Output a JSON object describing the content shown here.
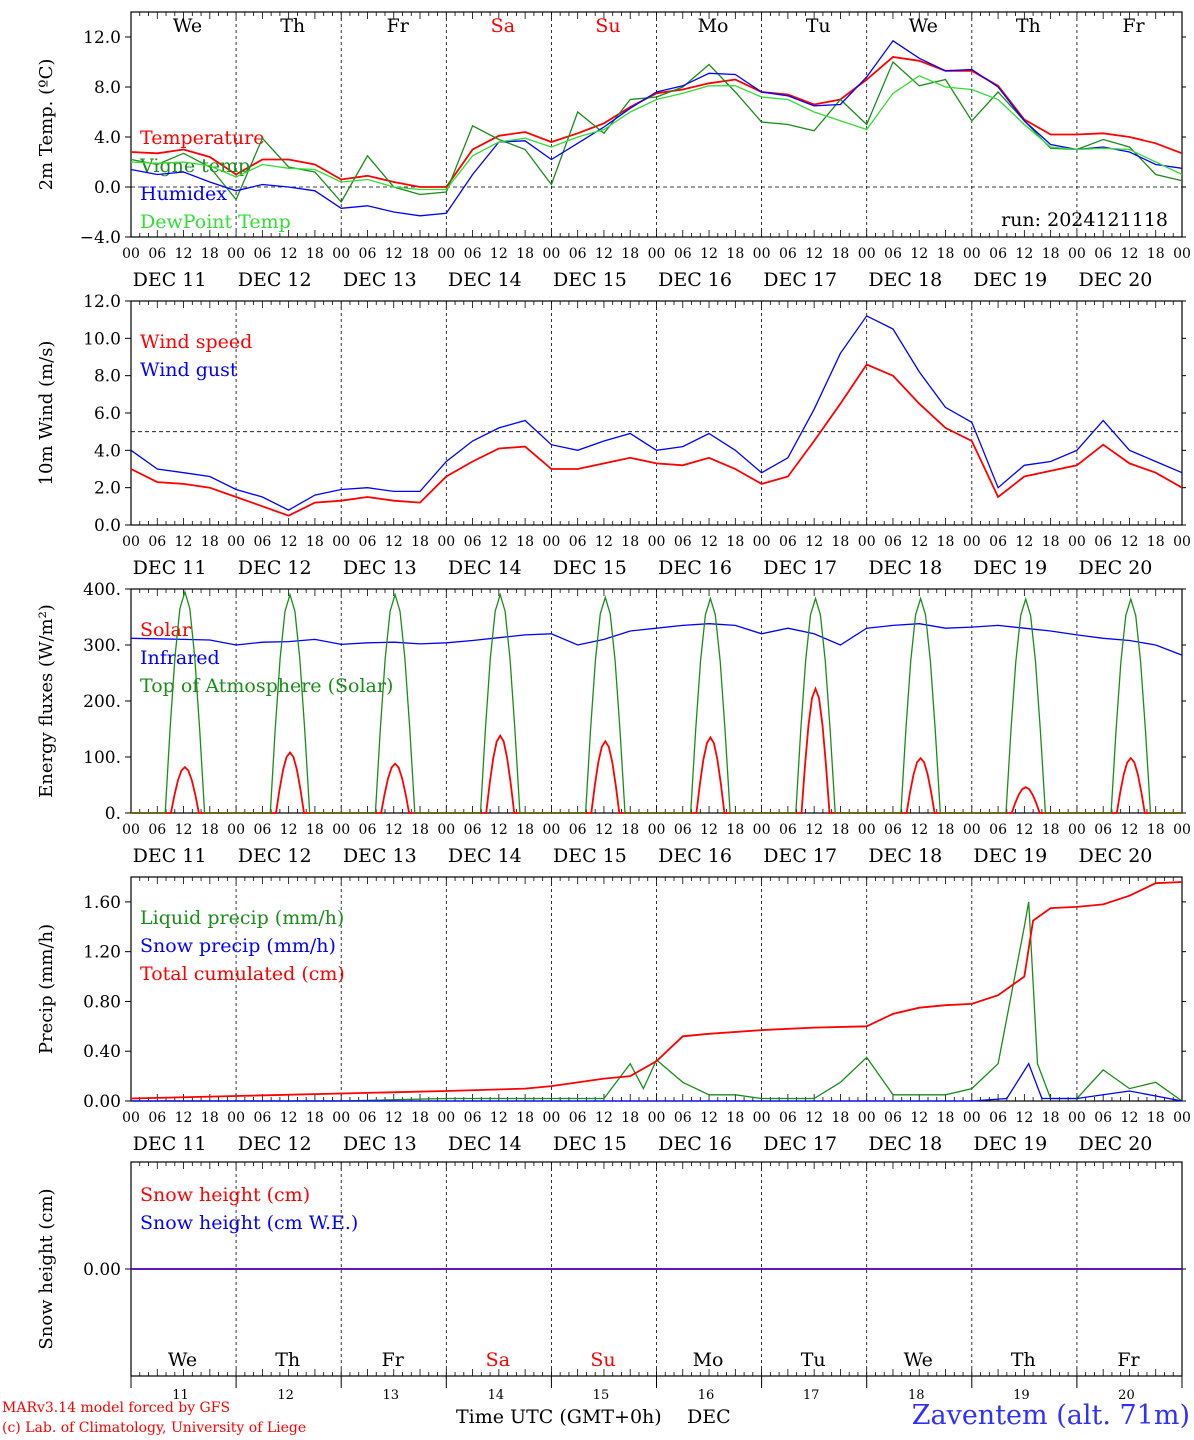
{
  "days": [
    {
      "abbr": "We",
      "date": "DEC 11",
      "num": "11",
      "weekend": false
    },
    {
      "abbr": "Th",
      "date": "DEC 12",
      "num": "12",
      "weekend": false
    },
    {
      "abbr": "Fr",
      "date": "DEC 13",
      "num": "13",
      "weekend": false
    },
    {
      "abbr": "Sa",
      "date": "DEC 14",
      "num": "14",
      "weekend": true
    },
    {
      "abbr": "Su",
      "date": "DEC 15",
      "num": "15",
      "weekend": true
    },
    {
      "abbr": "Mo",
      "date": "DEC 16",
      "num": "16",
      "weekend": false
    },
    {
      "abbr": "Tu",
      "date": "DEC 17",
      "num": "17",
      "weekend": false
    },
    {
      "abbr": "We",
      "date": "DEC 18",
      "num": "18",
      "weekend": false
    },
    {
      "abbr": "Th",
      "date": "DEC 19",
      "num": "19",
      "weekend": false
    },
    {
      "abbr": "Fr",
      "date": "DEC 20",
      "num": "20",
      "weekend": false
    }
  ],
  "hour_ticks": [
    "00",
    "06",
    "12",
    "18"
  ],
  "colors": {
    "red": "#ff0000",
    "blue": "#0000ff",
    "green": "#1a8c1a",
    "lightgreen": "#33dd33",
    "dark": "#000000"
  },
  "run_label": "run: 2024121118",
  "footer": {
    "model": "MARv3.14 model forced by GFS",
    "lab": "(c) Lab. of Climatology, University of Liege",
    "xlabel": "Time UTC (GMT+0h)",
    "xlabel_month": "DEC",
    "station": "Zaventem (alt. 71m)"
  },
  "chart_data": [
    {
      "type": "line",
      "ylabel": "2m Temp. (ºC)",
      "ylim": [
        -4,
        14
      ],
      "yticks": [
        -4,
        0,
        4,
        8,
        12
      ],
      "ytick_labels": [
        "−4.0",
        "0.0",
        "4.0",
        "8.0",
        "12.0"
      ],
      "refline": 0,
      "x_unit": "hours since DEC 11 00 UTC",
      "series": [
        {
          "name": "Temperature",
          "color": "red",
          "x": [
            0,
            6,
            12,
            18,
            24,
            30,
            36,
            42,
            48,
            54,
            60,
            66,
            72,
            78,
            84,
            90,
            96,
            102,
            108,
            114,
            120,
            126,
            132,
            138,
            144,
            150,
            156,
            162,
            168,
            174,
            180,
            186,
            192,
            198,
            204,
            210,
            216,
            222,
            228,
            234,
            240
          ],
          "y": [
            2.8,
            2.7,
            3.0,
            2.4,
            1.0,
            2.2,
            2.2,
            1.8,
            0.6,
            0.9,
            0.4,
            0.0,
            0.0,
            3.0,
            4.1,
            4.4,
            3.6,
            4.3,
            5.1,
            6.4,
            7.5,
            7.8,
            8.3,
            8.6,
            7.6,
            7.4,
            6.6,
            7.0,
            8.6,
            10.4,
            10.1,
            9.3,
            9.3,
            8.1,
            5.4,
            4.2,
            4.2,
            4.3,
            4.0,
            3.5,
            2.7
          ]
        },
        {
          "name": "Vigne temp",
          "color": "green",
          "x": [
            0,
            6,
            12,
            18,
            24,
            30,
            36,
            42,
            48,
            54,
            60,
            66,
            72,
            78,
            84,
            90,
            96,
            102,
            108,
            114,
            120,
            126,
            132,
            138,
            144,
            150,
            156,
            162,
            168,
            174,
            180,
            186,
            192,
            198,
            204,
            210,
            216,
            222,
            228,
            234,
            240
          ],
          "y": [
            2.2,
            1.8,
            2.7,
            1.6,
            -1.0,
            3.9,
            1.6,
            1.2,
            -1.2,
            2.5,
            0.0,
            -0.6,
            -0.4,
            4.9,
            3.8,
            3.0,
            0.2,
            6.0,
            4.3,
            7.0,
            7.2,
            8.0,
            9.8,
            7.6,
            5.2,
            5.0,
            4.5,
            7.0,
            5.0,
            10.0,
            8.1,
            8.6,
            5.3,
            7.6,
            5.3,
            3.1,
            3.0,
            3.8,
            3.2,
            1.0,
            0.5
          ]
        },
        {
          "name": "Humidex",
          "color": "blue",
          "x": [
            0,
            6,
            12,
            18,
            24,
            30,
            36,
            42,
            48,
            54,
            60,
            66,
            72,
            78,
            84,
            90,
            96,
            102,
            108,
            114,
            120,
            126,
            132,
            138,
            144,
            150,
            156,
            162,
            168,
            174,
            180,
            186,
            192,
            198,
            204,
            210,
            216,
            222,
            228,
            234,
            240
          ],
          "y": [
            1.4,
            1.0,
            1.2,
            0.4,
            -0.3,
            0.2,
            0.0,
            -0.3,
            -1.7,
            -1.5,
            -2.0,
            -2.3,
            -2.1,
            1.0,
            3.6,
            3.7,
            2.2,
            3.5,
            4.8,
            6.3,
            7.6,
            8.1,
            9.1,
            9.0,
            7.6,
            7.3,
            6.5,
            6.6,
            8.8,
            11.7,
            10.3,
            9.3,
            9.4,
            8.0,
            5.3,
            3.4,
            3.0,
            3.2,
            2.8,
            1.8,
            1.5
          ]
        },
        {
          "name": "DewPoint Temp",
          "color": "lightgreen",
          "x": [
            0,
            6,
            12,
            18,
            24,
            30,
            36,
            42,
            48,
            54,
            60,
            66,
            72,
            78,
            84,
            90,
            96,
            102,
            108,
            114,
            120,
            126,
            132,
            138,
            144,
            150,
            156,
            162,
            168,
            174,
            180,
            186,
            192,
            198,
            204,
            210,
            216,
            222,
            228,
            234,
            240
          ],
          "y": [
            2.0,
            1.9,
            2.0,
            1.7,
            0.8,
            1.8,
            1.5,
            1.4,
            0.4,
            0.6,
            0.0,
            -0.2,
            -0.2,
            2.5,
            3.6,
            3.9,
            3.2,
            4.0,
            4.6,
            6.0,
            7.0,
            7.5,
            8.1,
            8.1,
            7.2,
            7.0,
            6.0,
            5.3,
            4.6,
            7.5,
            8.9,
            8.0,
            7.8,
            7.0,
            5.0,
            3.2,
            3.0,
            3.1,
            3.0,
            2.0,
            1.0
          ]
        }
      ]
    },
    {
      "type": "line",
      "ylabel": "10m Wind (m/s)",
      "ylim": [
        0,
        12
      ],
      "yticks": [
        0,
        2,
        4,
        6,
        8,
        10,
        12
      ],
      "ytick_labels": [
        "0.0",
        "2.0",
        "4.0",
        "6.0",
        "8.0",
        "10.0",
        "12.0"
      ],
      "refline": 5,
      "x_unit": "hours since DEC 11 00 UTC",
      "series": [
        {
          "name": "Wind speed",
          "color": "red",
          "x": [
            0,
            6,
            12,
            18,
            24,
            30,
            36,
            42,
            48,
            54,
            60,
            66,
            72,
            78,
            84,
            90,
            96,
            102,
            108,
            114,
            120,
            126,
            132,
            138,
            144,
            150,
            156,
            162,
            168,
            174,
            180,
            186,
            192,
            198,
            204,
            210,
            216,
            222,
            228,
            234,
            240
          ],
          "y": [
            3.0,
            2.3,
            2.2,
            2.0,
            1.5,
            1.0,
            0.5,
            1.2,
            1.3,
            1.5,
            1.3,
            1.2,
            2.6,
            3.4,
            4.1,
            4.2,
            3.0,
            3.0,
            3.3,
            3.6,
            3.3,
            3.2,
            3.6,
            3.0,
            2.2,
            2.6,
            4.5,
            6.5,
            8.6,
            8.0,
            6.5,
            5.2,
            4.5,
            1.5,
            2.6,
            2.9,
            3.2,
            4.3,
            3.3,
            2.8,
            2.0
          ]
        },
        {
          "name": "Wind gust",
          "color": "blue",
          "x": [
            0,
            6,
            12,
            18,
            24,
            30,
            36,
            42,
            48,
            54,
            60,
            66,
            72,
            78,
            84,
            90,
            96,
            102,
            108,
            114,
            120,
            126,
            132,
            138,
            144,
            150,
            156,
            162,
            168,
            174,
            180,
            186,
            192,
            198,
            204,
            210,
            216,
            222,
            228,
            234,
            240
          ],
          "y": [
            4.0,
            3.0,
            2.8,
            2.6,
            1.9,
            1.5,
            0.8,
            1.6,
            1.9,
            2.0,
            1.8,
            1.8,
            3.4,
            4.5,
            5.2,
            5.6,
            4.3,
            4.0,
            4.5,
            4.9,
            4.0,
            4.2,
            4.9,
            4.0,
            2.8,
            3.6,
            6.2,
            9.2,
            11.2,
            10.5,
            8.2,
            6.3,
            5.5,
            2.0,
            3.2,
            3.4,
            4.0,
            5.6,
            4.0,
            3.4,
            2.8
          ]
        }
      ]
    },
    {
      "type": "line",
      "ylabel": "Energy fluxes (W/m²)",
      "ylim": [
        0,
        400
      ],
      "yticks": [
        0,
        100,
        200,
        300,
        400
      ],
      "ytick_labels": [
        "0.",
        "100.",
        "200.",
        "300.",
        "400."
      ],
      "x_unit": "hours since DEC 11 00 UTC",
      "series": [
        {
          "name": "Solar",
          "color": "red",
          "daily_peak": [
            82,
            108,
            88,
            138,
            128,
            135,
            222,
            98,
            46,
            98
          ]
        },
        {
          "name": "Infrared",
          "color": "blue",
          "x": [
            0,
            6,
            12,
            18,
            24,
            30,
            36,
            42,
            48,
            54,
            60,
            66,
            72,
            78,
            84,
            90,
            96,
            102,
            108,
            114,
            120,
            126,
            132,
            138,
            144,
            150,
            156,
            162,
            168,
            174,
            180,
            186,
            192,
            198,
            204,
            210,
            216,
            222,
            228,
            234,
            240
          ],
          "y": [
            312,
            311,
            310,
            309,
            300,
            305,
            306,
            310,
            301,
            304,
            305,
            302,
            304,
            308,
            313,
            318,
            320,
            300,
            310,
            325,
            330,
            335,
            338,
            335,
            320,
            330,
            320,
            300,
            330,
            335,
            338,
            330,
            332,
            335,
            330,
            325,
            318,
            312,
            308,
            300,
            282
          ]
        },
        {
          "name": "Top of Atmosphere (Solar)",
          "color": "green",
          "daily_peak": [
            395,
            390,
            390,
            390,
            385,
            383,
            383,
            383,
            382,
            382
          ]
        }
      ]
    },
    {
      "type": "line",
      "ylabel": "Precip (mm/h)",
      "ylim": [
        0,
        1.8
      ],
      "yticks": [
        0,
        0.4,
        0.8,
        1.2,
        1.6
      ],
      "ytick_labels": [
        "0.00",
        "0.40",
        "0.80",
        "1.20",
        "1.60"
      ],
      "x_unit": "hours since DEC 11 00 UTC",
      "series": [
        {
          "name": "Liquid precip (mm/h)",
          "color": "green",
          "x": [
            0,
            24,
            48,
            72,
            96,
            108,
            114,
            117,
            120,
            126,
            132,
            138,
            144,
            156,
            162,
            168,
            174,
            180,
            186,
            192,
            198,
            204,
            205,
            207,
            210,
            216,
            222,
            228,
            234,
            240
          ],
          "y": [
            0,
            0,
            0,
            0.02,
            0.02,
            0.02,
            0.3,
            0.1,
            0.33,
            0.15,
            0.05,
            0.05,
            0.02,
            0.02,
            0.15,
            0.35,
            0.05,
            0.05,
            0.05,
            0.1,
            0.3,
            1.4,
            1.6,
            0.3,
            0.02,
            0.02,
            0.25,
            0.1,
            0.15,
            0.0
          ]
        },
        {
          "name": "Snow precip (mm/h)",
          "color": "blue",
          "x": [
            0,
            48,
            96,
            120,
            144,
            168,
            192,
            200,
            205,
            208,
            216,
            228,
            240
          ],
          "y": [
            0,
            0,
            0,
            0,
            0,
            0,
            0,
            0.02,
            0.3,
            0.02,
            0.02,
            0.08,
            0.0
          ]
        },
        {
          "name": "Total cumulated (cm)",
          "color": "red",
          "x": [
            0,
            24,
            48,
            72,
            90,
            96,
            108,
            114,
            120,
            126,
            132,
            144,
            156,
            168,
            174,
            180,
            186,
            192,
            198,
            204,
            206,
            210,
            216,
            222,
            228,
            234,
            240
          ],
          "y": [
            0.02,
            0.04,
            0.06,
            0.08,
            0.1,
            0.12,
            0.18,
            0.2,
            0.32,
            0.52,
            0.54,
            0.57,
            0.59,
            0.6,
            0.7,
            0.75,
            0.77,
            0.78,
            0.85,
            1.0,
            1.45,
            1.55,
            1.56,
            1.58,
            1.65,
            1.75,
            1.76
          ]
        }
      ]
    },
    {
      "type": "line",
      "ylabel": "Snow height (cm)",
      "ylim": [
        -1,
        1
      ],
      "yticks": [
        0
      ],
      "ytick_labels": [
        "0.00"
      ],
      "x_unit": "hours since DEC 11 00 UTC",
      "series": [
        {
          "name": "Snow height (cm)",
          "color": "red",
          "x": [
            0,
            240
          ],
          "y": [
            0,
            0
          ]
        },
        {
          "name": "Snow height (cm W.E.)",
          "color": "blue",
          "x": [
            0,
            240
          ],
          "y": [
            0,
            0
          ]
        }
      ]
    }
  ]
}
